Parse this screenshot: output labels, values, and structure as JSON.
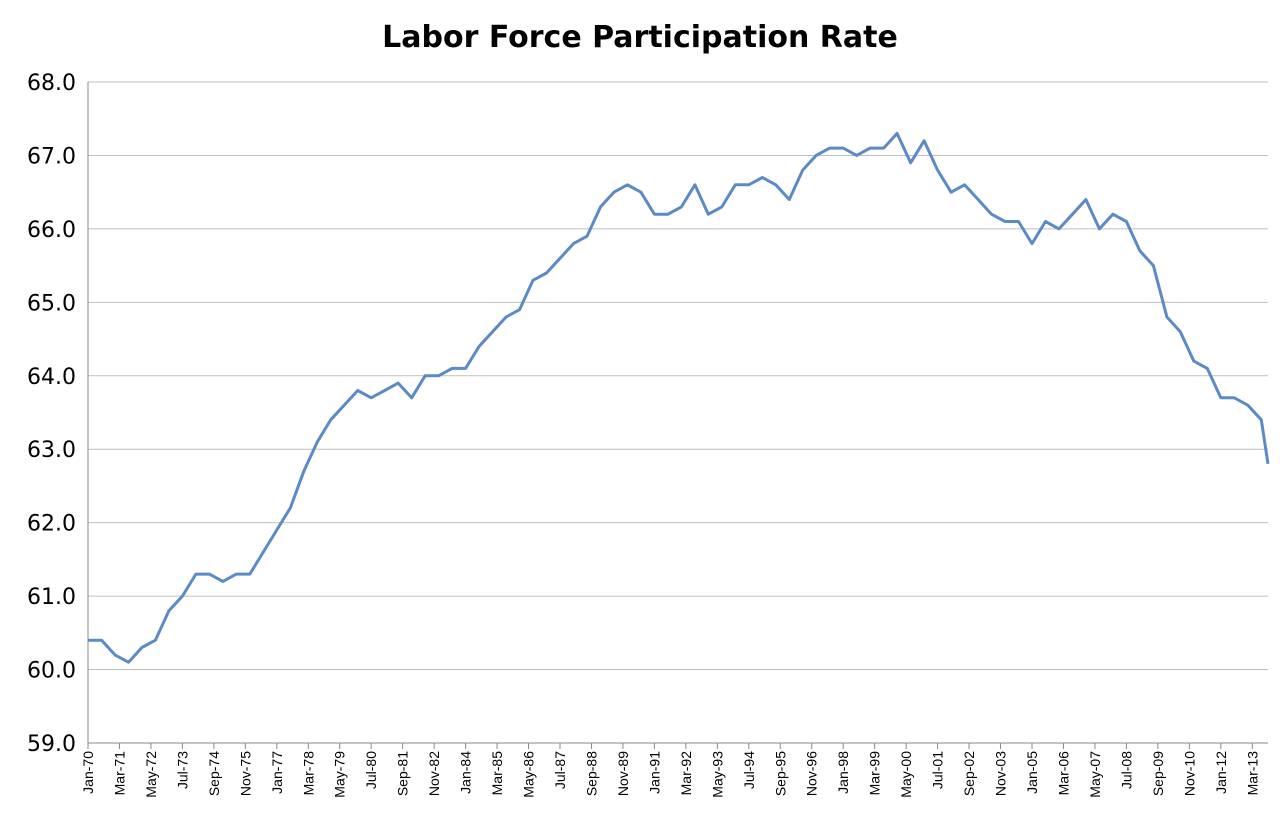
{
  "chart_data": {
    "type": "line",
    "title": "Labor Force Participation Rate",
    "xlabel": "",
    "ylabel": "",
    "ylim": [
      59.0,
      68.0
    ],
    "y_ticks": [
      "59.0",
      "60.0",
      "61.0",
      "62.0",
      "63.0",
      "64.0",
      "65.0",
      "66.0",
      "67.0",
      "68.0"
    ],
    "x_range": [
      "Jan-70",
      "Oct-13"
    ],
    "x_tick_labels": [
      "Jan-70",
      "Mar-71",
      "May-72",
      "Jul-73",
      "Sep-74",
      "Nov-75",
      "Jan-77",
      "Mar-78",
      "May-79",
      "Jul-80",
      "Sep-81",
      "Nov-82",
      "Jan-84",
      "Mar-85",
      "May-86",
      "Jul-87",
      "Sep-88",
      "Nov-89",
      "Jan-91",
      "Mar-92",
      "May-93",
      "Jul-94",
      "Sep-95",
      "Nov-96",
      "Jan-98",
      "Mar-99",
      "May-00",
      "Jul-01",
      "Sep-02",
      "Nov-03",
      "Jan-05",
      "Mar-06",
      "May-07",
      "Jul-08",
      "Sep-09",
      "Nov-10",
      "Jan-12",
      "Mar-13"
    ],
    "grid": true,
    "legend": "none",
    "line_color": "#5b8ac6",
    "series": [
      {
        "points": [
          [
            "Jan-70",
            60.4
          ],
          [
            "Jul-70",
            60.4
          ],
          [
            "Jan-71",
            60.2
          ],
          [
            "Jul-71",
            60.1
          ],
          [
            "Jan-72",
            60.3
          ],
          [
            "Jul-72",
            60.4
          ],
          [
            "Jan-73",
            60.8
          ],
          [
            "Jul-73",
            61.0
          ],
          [
            "Jan-74",
            61.3
          ],
          [
            "Jul-74",
            61.3
          ],
          [
            "Jan-75",
            61.2
          ],
          [
            "Jul-75",
            61.3
          ],
          [
            "Jan-76",
            61.3
          ],
          [
            "Jul-76",
            61.6
          ],
          [
            "Jan-77",
            61.9
          ],
          [
            "Jul-77",
            62.2
          ],
          [
            "Jan-78",
            62.7
          ],
          [
            "Jul-78",
            63.1
          ],
          [
            "Jan-79",
            63.4
          ],
          [
            "Jul-79",
            63.6
          ],
          [
            "Jan-80",
            63.8
          ],
          [
            "Jul-80",
            63.7
          ],
          [
            "Jan-81",
            63.8
          ],
          [
            "Jul-81",
            63.9
          ],
          [
            "Jan-82",
            63.7
          ],
          [
            "Jul-82",
            64.0
          ],
          [
            "Jan-83",
            64.0
          ],
          [
            "Jul-83",
            64.1
          ],
          [
            "Jan-84",
            64.1
          ],
          [
            "Jul-84",
            64.4
          ],
          [
            "Jan-85",
            64.6
          ],
          [
            "Jul-85",
            64.8
          ],
          [
            "Jan-86",
            64.9
          ],
          [
            "Jul-86",
            65.3
          ],
          [
            "Jan-87",
            65.4
          ],
          [
            "Jul-87",
            65.6
          ],
          [
            "Jan-88",
            65.8
          ],
          [
            "Jul-88",
            65.9
          ],
          [
            "Jan-89",
            66.3
          ],
          [
            "Jul-89",
            66.5
          ],
          [
            "Jan-90",
            66.6
          ],
          [
            "Jul-90",
            66.5
          ],
          [
            "Jan-91",
            66.2
          ],
          [
            "Jul-91",
            66.2
          ],
          [
            "Jan-92",
            66.3
          ],
          [
            "Jul-92",
            66.6
          ],
          [
            "Jan-93",
            66.2
          ],
          [
            "Jul-93",
            66.3
          ],
          [
            "Jan-94",
            66.6
          ],
          [
            "Jul-94",
            66.6
          ],
          [
            "Jan-95",
            66.7
          ],
          [
            "Jul-95",
            66.6
          ],
          [
            "Jan-96",
            66.4
          ],
          [
            "Jul-96",
            66.8
          ],
          [
            "Jan-97",
            67.0
          ],
          [
            "Jul-97",
            67.1
          ],
          [
            "Jan-98",
            67.1
          ],
          [
            "Jul-98",
            67.0
          ],
          [
            "Jan-99",
            67.1
          ],
          [
            "Jul-99",
            67.1
          ],
          [
            "Jan-00",
            67.3
          ],
          [
            "Jul-00",
            66.9
          ],
          [
            "Jan-01",
            67.2
          ],
          [
            "Jul-01",
            66.8
          ],
          [
            "Jan-02",
            66.5
          ],
          [
            "Jul-02",
            66.6
          ],
          [
            "Jan-03",
            66.4
          ],
          [
            "Jul-03",
            66.2
          ],
          [
            "Jan-04",
            66.1
          ],
          [
            "Jul-04",
            66.1
          ],
          [
            "Jan-05",
            65.8
          ],
          [
            "Jul-05",
            66.1
          ],
          [
            "Jan-06",
            66.0
          ],
          [
            "Jul-06",
            66.2
          ],
          [
            "Jan-07",
            66.4
          ],
          [
            "Jul-07",
            66.0
          ],
          [
            "Jan-08",
            66.2
          ],
          [
            "Jul-08",
            66.1
          ],
          [
            "Jan-09",
            65.7
          ],
          [
            "Jul-09",
            65.5
          ],
          [
            "Jan-10",
            64.8
          ],
          [
            "Jul-10",
            64.6
          ],
          [
            "Jan-11",
            64.2
          ],
          [
            "Jul-11",
            64.1
          ],
          [
            "Jan-12",
            63.7
          ],
          [
            "Jul-12",
            63.7
          ],
          [
            "Jan-13",
            63.6
          ],
          [
            "Jul-13",
            63.4
          ],
          [
            "Oct-13",
            62.8
          ]
        ]
      }
    ]
  }
}
